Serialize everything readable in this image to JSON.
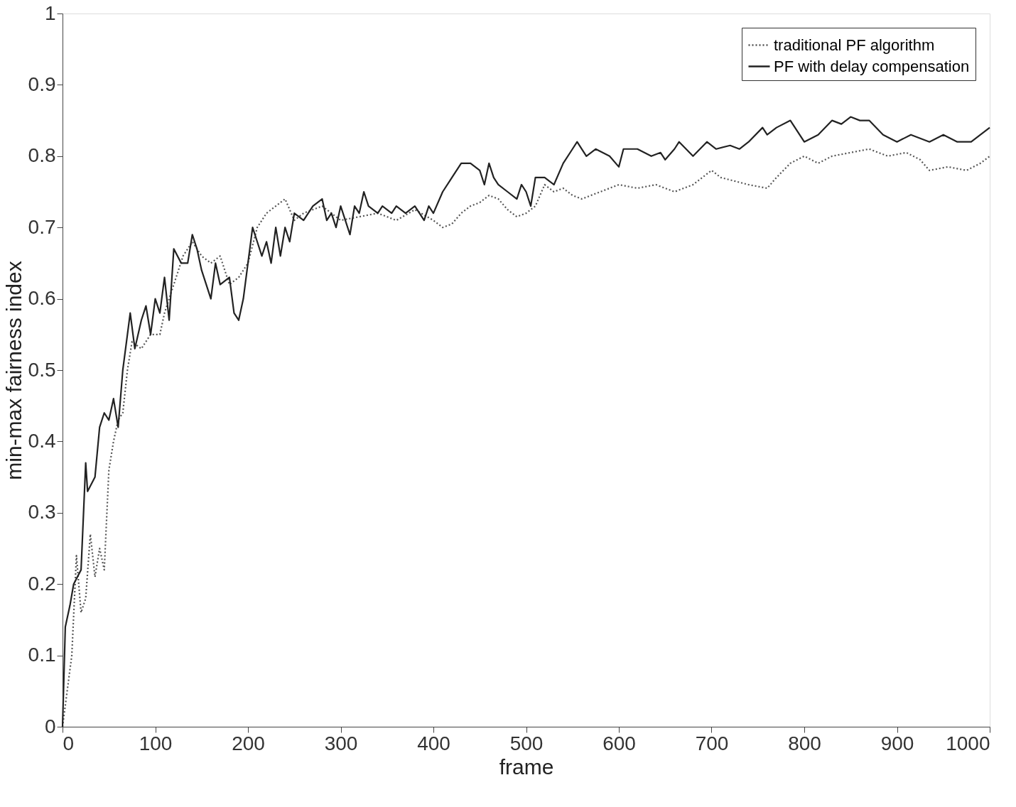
{
  "chart_data": {
    "type": "line",
    "xlabel": "frame",
    "ylabel": "min-max fairness index",
    "xlim": [
      0,
      1000
    ],
    "ylim": [
      0,
      1
    ],
    "xticks": [
      0,
      100,
      200,
      300,
      400,
      500,
      600,
      700,
      800,
      900,
      1000
    ],
    "yticks": [
      0,
      0.1,
      0.2,
      0.3,
      0.4,
      0.5,
      0.6,
      0.7,
      0.8,
      0.9,
      1
    ],
    "grid": false,
    "legend": "top right",
    "marker": "none",
    "series": [
      {
        "name": "traditional PF algorithm",
        "color": "#555555",
        "line_style": "dotted",
        "x": [
          0,
          5,
          10,
          15,
          20,
          25,
          30,
          35,
          40,
          45,
          50,
          55,
          60,
          65,
          70,
          75,
          85,
          95,
          105,
          110,
          120,
          130,
          140,
          150,
          160,
          170,
          180,
          190,
          200,
          210,
          220,
          230,
          240,
          250,
          260,
          280,
          300,
          320,
          340,
          360,
          380,
          400,
          410,
          420,
          430,
          440,
          450,
          460,
          470,
          480,
          490,
          500,
          510,
          520,
          530,
          540,
          550,
          560,
          580,
          600,
          620,
          640,
          660,
          680,
          700,
          710,
          725,
          740,
          760,
          770,
          785,
          800,
          815,
          830,
          850,
          870,
          890,
          910,
          925,
          935,
          955,
          975,
          990,
          1000
        ],
        "values": [
          0,
          0.05,
          0.1,
          0.24,
          0.16,
          0.18,
          0.27,
          0.21,
          0.25,
          0.22,
          0.36,
          0.4,
          0.43,
          0.44,
          0.5,
          0.54,
          0.53,
          0.55,
          0.55,
          0.58,
          0.62,
          0.66,
          0.68,
          0.66,
          0.65,
          0.66,
          0.62,
          0.63,
          0.65,
          0.7,
          0.72,
          0.73,
          0.74,
          0.71,
          0.72,
          0.73,
          0.71,
          0.715,
          0.72,
          0.71,
          0.725,
          0.71,
          0.7,
          0.705,
          0.72,
          0.73,
          0.735,
          0.745,
          0.74,
          0.725,
          0.715,
          0.72,
          0.73,
          0.76,
          0.75,
          0.755,
          0.745,
          0.74,
          0.75,
          0.76,
          0.755,
          0.76,
          0.75,
          0.76,
          0.78,
          0.77,
          0.765,
          0.76,
          0.755,
          0.77,
          0.79,
          0.8,
          0.79,
          0.8,
          0.805,
          0.81,
          0.8,
          0.805,
          0.795,
          0.78,
          0.785,
          0.78,
          0.79,
          0.8
        ]
      },
      {
        "name": "PF with delay compensation",
        "color": "#222222",
        "line_style": "solid",
        "x": [
          0,
          3,
          8,
          12,
          20,
          25,
          27,
          35,
          40,
          45,
          50,
          55,
          60,
          65,
          70,
          73,
          78,
          85,
          90,
          95,
          100,
          105,
          110,
          115,
          120,
          128,
          135,
          140,
          145,
          150,
          160,
          165,
          170,
          180,
          185,
          190,
          195,
          200,
          205,
          210,
          215,
          220,
          225,
          230,
          235,
          240,
          245,
          250,
          260,
          270,
          280,
          285,
          290,
          295,
          300,
          305,
          310,
          315,
          320,
          325,
          330,
          340,
          345,
          355,
          360,
          370,
          380,
          390,
          395,
          400,
          410,
          420,
          430,
          440,
          450,
          455,
          460,
          465,
          470,
          480,
          490,
          495,
          500,
          505,
          510,
          520,
          530,
          540,
          550,
          555,
          565,
          575,
          590,
          600,
          605,
          620,
          635,
          645,
          650,
          660,
          665,
          680,
          695,
          705,
          720,
          730,
          740,
          755,
          760,
          770,
          785,
          800,
          815,
          830,
          840,
          850,
          860,
          870,
          885,
          900,
          915,
          935,
          950,
          965,
          980,
          1000
        ],
        "values": [
          0,
          0.14,
          0.17,
          0.2,
          0.22,
          0.37,
          0.33,
          0.35,
          0.42,
          0.44,
          0.43,
          0.46,
          0.42,
          0.5,
          0.55,
          0.58,
          0.53,
          0.57,
          0.59,
          0.55,
          0.6,
          0.58,
          0.63,
          0.57,
          0.67,
          0.65,
          0.65,
          0.69,
          0.67,
          0.64,
          0.6,
          0.65,
          0.62,
          0.63,
          0.58,
          0.57,
          0.6,
          0.65,
          0.7,
          0.68,
          0.66,
          0.68,
          0.65,
          0.7,
          0.66,
          0.7,
          0.68,
          0.72,
          0.71,
          0.73,
          0.74,
          0.71,
          0.72,
          0.7,
          0.73,
          0.71,
          0.69,
          0.73,
          0.72,
          0.75,
          0.73,
          0.72,
          0.73,
          0.72,
          0.73,
          0.72,
          0.73,
          0.71,
          0.73,
          0.72,
          0.75,
          0.77,
          0.79,
          0.79,
          0.78,
          0.76,
          0.79,
          0.77,
          0.76,
          0.75,
          0.74,
          0.76,
          0.75,
          0.73,
          0.77,
          0.77,
          0.76,
          0.79,
          0.81,
          0.82,
          0.8,
          0.81,
          0.8,
          0.785,
          0.81,
          0.81,
          0.8,
          0.805,
          0.795,
          0.81,
          0.82,
          0.8,
          0.82,
          0.81,
          0.815,
          0.81,
          0.82,
          0.84,
          0.83,
          0.84,
          0.85,
          0.82,
          0.83,
          0.85,
          0.845,
          0.855,
          0.85,
          0.85,
          0.83,
          0.82,
          0.83,
          0.82,
          0.83,
          0.82,
          0.82,
          0.84
        ]
      }
    ]
  }
}
